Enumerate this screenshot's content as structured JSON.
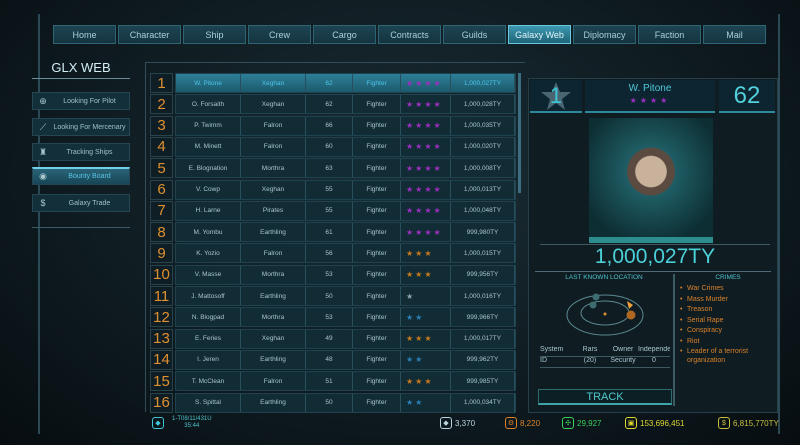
{
  "tabs": [
    "Home",
    "Character",
    "Ship",
    "Crew",
    "Cargo",
    "Contracts",
    "Guilds",
    "Galaxy Web",
    "Diplomacy",
    "Faction",
    "Mail"
  ],
  "active_tab": "Galaxy Web",
  "sidebar": {
    "title": "GLX WEB",
    "items": [
      {
        "label": "Looking For Pilot",
        "icon": "pilot-icon"
      },
      {
        "label": "Looking For Mercenary",
        "icon": "rifle-icon"
      },
      {
        "label": "Tracking Ships",
        "icon": "ship-icon"
      },
      {
        "label": "Bounty Board",
        "icon": "bounty-icon",
        "active": true
      },
      {
        "label": "Galaxy Trade",
        "icon": "dollar-icon"
      }
    ]
  },
  "star_colors": {
    "purple": "#9b2fc0",
    "orange": "#c8781e",
    "blue": "#2a7fb8",
    "grey": "#8fa3a8"
  },
  "bounty_table": [
    {
      "rank": "1",
      "name": "W. Pitone",
      "race": "Xeghan",
      "level": "62",
      "class": "Fighter",
      "stars": 4,
      "star_color": "purple",
      "bounty": "1,000,027TY",
      "selected": true
    },
    {
      "rank": "2",
      "name": "O. Forsaith",
      "race": "Xeghan",
      "level": "62",
      "class": "Fighter",
      "stars": 4,
      "star_color": "purple",
      "bounty": "1,000,028TY"
    },
    {
      "rank": "3",
      "name": "P. Twimm",
      "race": "Falron",
      "level": "66",
      "class": "Fighter",
      "stars": 4,
      "star_color": "purple",
      "bounty": "1,000,035TY"
    },
    {
      "rank": "4",
      "name": "M. Minett",
      "race": "Falron",
      "level": "60",
      "class": "Fighter",
      "stars": 4,
      "star_color": "purple",
      "bounty": "1,000,020TY"
    },
    {
      "rank": "5",
      "name": "E. Blognation",
      "race": "Morthra",
      "level": "63",
      "class": "Fighter",
      "stars": 4,
      "star_color": "purple",
      "bounty": "1,000,008TY"
    },
    {
      "rank": "6",
      "name": "V. Cowp",
      "race": "Xeghan",
      "level": "55",
      "class": "Fighter",
      "stars": 4,
      "star_color": "purple",
      "bounty": "1,000,013TY"
    },
    {
      "rank": "7",
      "name": "H. Larne",
      "race": "Pirates",
      "level": "55",
      "class": "Fighter",
      "stars": 4,
      "star_color": "purple",
      "bounty": "1,000,048TY"
    },
    {
      "rank": "8",
      "name": "M. Yombu",
      "race": "Earthling",
      "level": "61",
      "class": "Fighter",
      "stars": 4,
      "star_color": "purple",
      "bounty": "999,980TY"
    },
    {
      "rank": "9",
      "name": "K. Yozio",
      "race": "Falron",
      "level": "56",
      "class": "Fighter",
      "stars": 3,
      "star_color": "orange",
      "bounty": "1,000,015TY"
    },
    {
      "rank": "10",
      "name": "V. Masse",
      "race": "Morthra",
      "level": "53",
      "class": "Fighter",
      "stars": 3,
      "star_color": "orange",
      "bounty": "999,956TY"
    },
    {
      "rank": "11",
      "name": "J. Mattosoff",
      "race": "Earthling",
      "level": "50",
      "class": "Fighter",
      "stars": 1,
      "star_color": "grey",
      "bounty": "1,000,016TY"
    },
    {
      "rank": "12",
      "name": "N. Blogpad",
      "race": "Morthra",
      "level": "53",
      "class": "Fighter",
      "stars": 2,
      "star_color": "blue",
      "bounty": "999,966TY"
    },
    {
      "rank": "13",
      "name": "E. Feries",
      "race": "Xeghan",
      "level": "49",
      "class": "Fighter",
      "stars": 3,
      "star_color": "orange",
      "bounty": "1,000,017TY"
    },
    {
      "rank": "14",
      "name": "I. Jeren",
      "race": "Earthling",
      "level": "48",
      "class": "Fighter",
      "stars": 2,
      "star_color": "blue",
      "bounty": "999,962TY"
    },
    {
      "rank": "15",
      "name": "T. McClean",
      "race": "Falron",
      "level": "51",
      "class": "Fighter",
      "stars": 3,
      "star_color": "orange",
      "bounty": "999,985TY"
    },
    {
      "rank": "16",
      "name": "S. Spittal",
      "race": "Earthling",
      "level": "50",
      "class": "Fighter",
      "stars": 2,
      "star_color": "blue",
      "bounty": "1,000,034TY"
    }
  ],
  "detail": {
    "rank": "1",
    "name": "W. Pitone",
    "stars": 4,
    "level": "62",
    "bounty": "1,000,027TY",
    "location_title": "LAST KNOWN LOCATION",
    "system_label": "System",
    "system": "Rars",
    "owner_label": "Owner",
    "owner": "Independen",
    "id_label": "ID",
    "id": "(20)",
    "security_label": "Security",
    "security": "0",
    "crimes_title": "CRIMES",
    "crimes": [
      "War Crimes",
      "Mass Murder",
      "Treason",
      "Serial Rape",
      "Conspiracy",
      "Riot",
      "Leader of a terrorist organization"
    ],
    "track_label": "TRACK"
  },
  "status": {
    "date": "1-T08/11/431U",
    "time": "35:44"
  },
  "resources": [
    {
      "icon": "crystal-icon",
      "value": "3,370",
      "color": "#b8d4dc"
    },
    {
      "icon": "gear-icon",
      "value": "8,220",
      "color": "#d8822a"
    },
    {
      "icon": "biohazard-icon",
      "value": "29,927",
      "color": "#3ccf5a"
    },
    {
      "icon": "cargo-icon",
      "value": "153,696,451",
      "color": "#e0d830"
    },
    {
      "icon": "credits-icon",
      "value": "6,815,770TY",
      "color": "#c8c040"
    }
  ]
}
